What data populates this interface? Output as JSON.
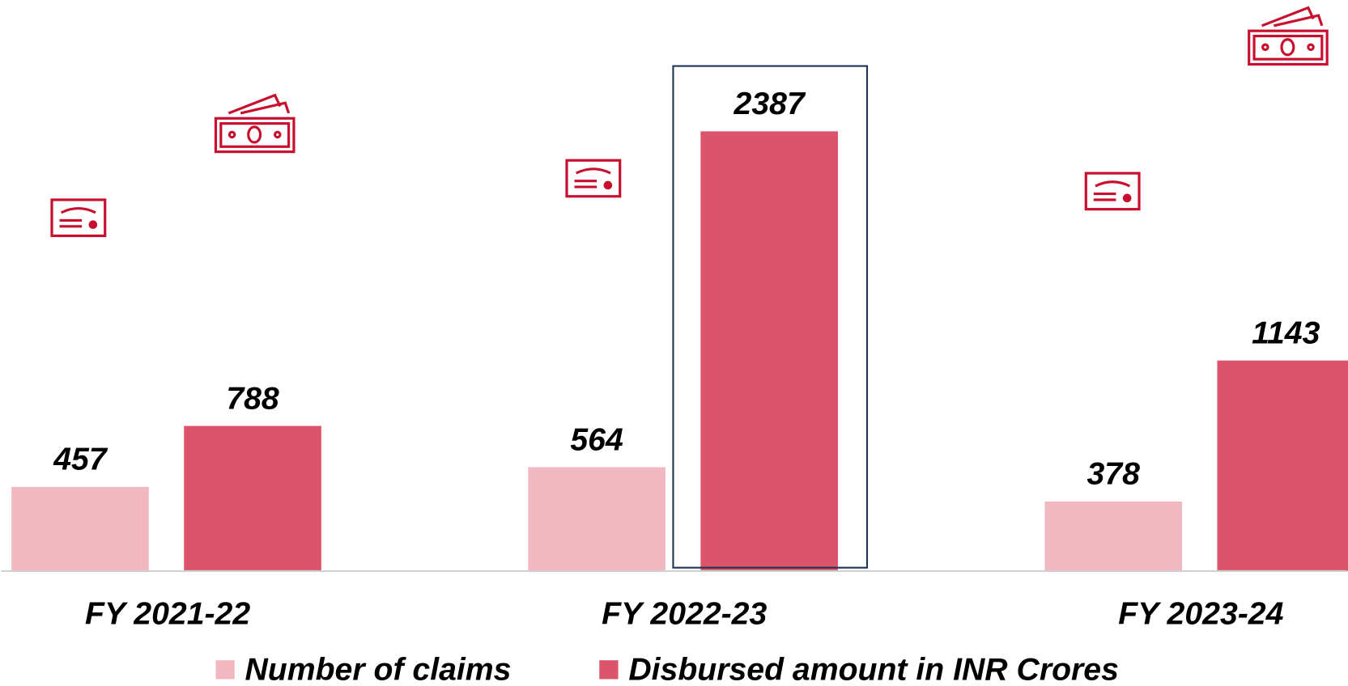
{
  "chart_data": {
    "type": "bar",
    "categories": [
      "FY 2021-22",
      "FY 2022-23",
      "FY 2023-24"
    ],
    "series": [
      {
        "name": "Number of claims",
        "color": "#f2b8c2",
        "values": [
          457,
          564,
          378
        ]
      },
      {
        "name": "Disbursed amount in INR Crores",
        "color": "#db546b",
        "values": [
          788,
          2387,
          1143
        ]
      }
    ],
    "ylim": [
      0,
      3100
    ]
  }
}
